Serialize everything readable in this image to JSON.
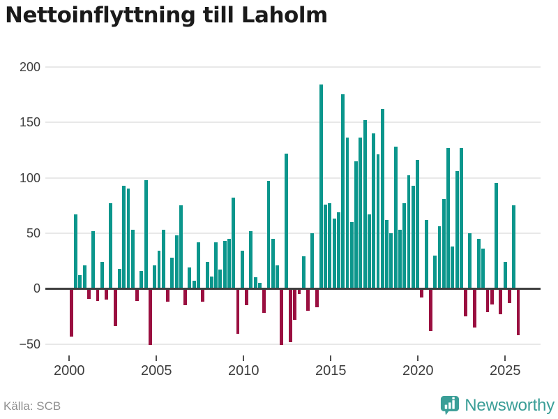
{
  "title": "Nettoinflyttning till Laholm",
  "source": "Källa: SCB",
  "brand": {
    "name": "Newsworthy",
    "icon": "newsworthy-logo-icon",
    "color": "#3a9e97"
  },
  "chart_data": {
    "type": "bar",
    "title": "Nettoinflyttning till Laholm",
    "frequency": "quarterly",
    "start": "2000-Q1",
    "end": "2025-Q3",
    "grid": true,
    "positive_color": "#0b968c",
    "negative_color": "#9a0f40",
    "x_tick_labels": [
      "2000",
      "2005",
      "2010",
      "2015",
      "2020",
      "2025"
    ],
    "y_ticks": [
      -50,
      0,
      50,
      100,
      150,
      200
    ],
    "y_tick_labels": [
      "−50",
      "0",
      "50",
      "100",
      "150",
      "200"
    ],
    "ylim": [
      -55,
      205
    ],
    "series": [
      {
        "name": "Nettoinflyttning",
        "by_year": [
          {
            "year": 2000,
            "values": [
              -43,
              67,
              12,
              21
            ]
          },
          {
            "year": 2001,
            "values": [
              -9,
              52,
              -11,
              24
            ]
          },
          {
            "year": 2002,
            "values": [
              -10,
              77,
              -34,
              18
            ]
          },
          {
            "year": 2003,
            "values": [
              93,
              90,
              53,
              -11
            ]
          },
          {
            "year": 2004,
            "values": [
              16,
              98,
              -51,
              21
            ]
          },
          {
            "year": 2005,
            "values": [
              34,
              53,
              -12,
              28
            ]
          },
          {
            "year": 2006,
            "values": [
              48,
              75,
              -15,
              19
            ]
          },
          {
            "year": 2007,
            "values": [
              7,
              42,
              -12,
              24
            ]
          },
          {
            "year": 2008,
            "values": [
              11,
              42,
              17,
              43
            ]
          },
          {
            "year": 2009,
            "values": [
              45,
              82,
              -41,
              34
            ]
          },
          {
            "year": 2010,
            "values": [
              -15,
              52,
              10,
              5
            ]
          },
          {
            "year": 2011,
            "values": [
              -22,
              97,
              45,
              21
            ]
          },
          {
            "year": 2012,
            "values": [
              -51,
              122,
              -48,
              -28
            ]
          },
          {
            "year": 2013,
            "values": [
              -5,
              29,
              -20,
              50
            ]
          },
          {
            "year": 2014,
            "values": [
              -17,
              184,
              76,
              77
            ]
          },
          {
            "year": 2015,
            "values": [
              63,
              69,
              175,
              136
            ]
          },
          {
            "year": 2016,
            "values": [
              60,
              115,
              136,
              152
            ]
          },
          {
            "year": 2017,
            "values": [
              67,
              140,
              121,
              162
            ]
          },
          {
            "year": 2018,
            "values": [
              62,
              50,
              128,
              53
            ]
          },
          {
            "year": 2019,
            "values": [
              77,
              102,
              93,
              116
            ]
          },
          {
            "year": 2020,
            "values": [
              -8,
              62,
              -38,
              30
            ]
          },
          {
            "year": 2021,
            "values": [
              56,
              81,
              127,
              38
            ]
          },
          {
            "year": 2022,
            "values": [
              106,
              127,
              -25,
              50
            ]
          },
          {
            "year": 2023,
            "values": [
              -35,
              45,
              36,
              -21
            ]
          },
          {
            "year": 2024,
            "values": [
              -14,
              95,
              -23,
              24
            ]
          },
          {
            "year": 2025,
            "values": [
              -13,
              75,
              -42
            ]
          }
        ]
      }
    ]
  }
}
